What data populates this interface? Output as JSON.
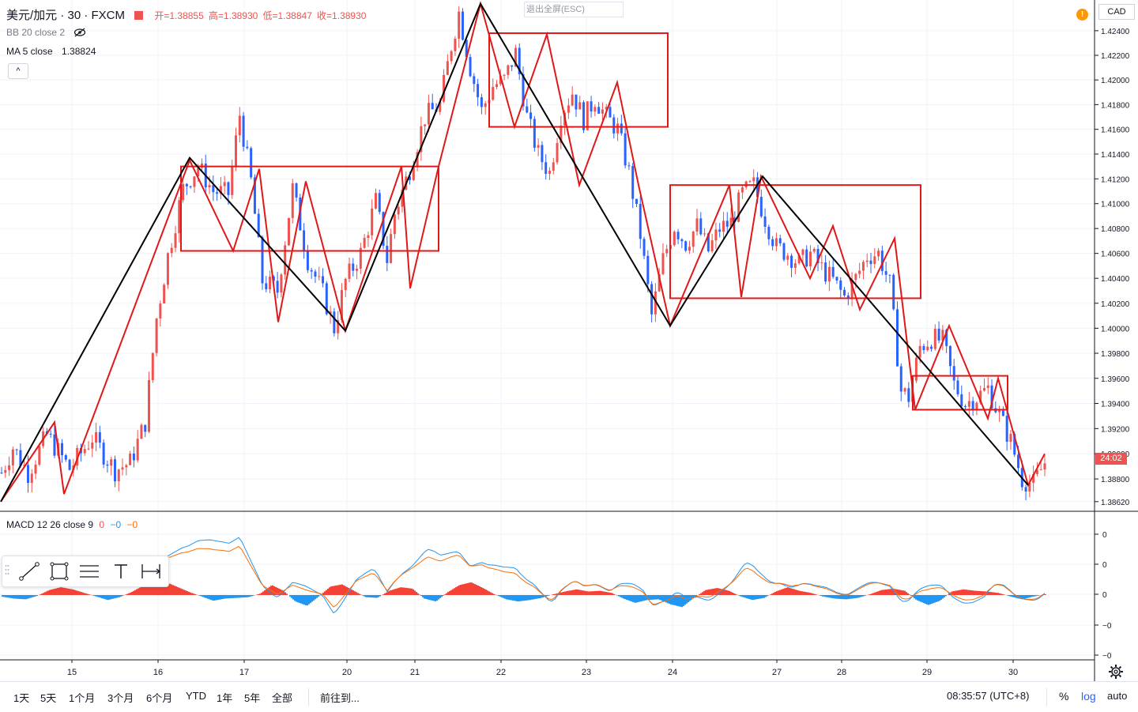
{
  "header": {
    "symbol": "美元/加元 · 30 · FXCM",
    "open_label": "开=1.38855",
    "high_label": "高=1.38930",
    "low_label": "低=1.38847",
    "close_label": "收=1.38930",
    "bb_label": "BB 20 close 2",
    "ma_label": "MA 5 close",
    "ma_value": "1.38824",
    "exit_fullscreen": "退出全屏(ESC)",
    "alert_badge": "!",
    "currency": "CAD",
    "collapse": "^"
  },
  "colors": {
    "up": "#ef5350",
    "down": "#2962ff",
    "wave_red": "#e01818",
    "wave_black": "#000000",
    "macd_line": "#2196f3",
    "signal_line": "#ff6d00",
    "hist_pos": "#f44336",
    "hist_neg": "#2196f3"
  },
  "chart_data": {
    "type": "candlestick",
    "symbol": "USDCAD",
    "timeframe": "30",
    "y_scale": "log",
    "ylim": [
      1.3855,
      1.4265
    ],
    "y_ticks": [
      "1.42400",
      "1.42200",
      "1.42000",
      "1.41800",
      "1.41600",
      "1.41400",
      "1.41200",
      "1.41000",
      "1.40800",
      "1.40600",
      "1.40400",
      "1.40200",
      "1.40000",
      "1.39800",
      "1.39600",
      "1.39400",
      "1.39200",
      "1.39000",
      "1.38800",
      "1.38620"
    ],
    "x_ticks": [
      "15",
      "16",
      "17",
      "20",
      "21",
      "22",
      "23",
      "24",
      "27",
      "28",
      "29",
      "30"
    ],
    "last_price_countdown": "24:02",
    "price_path": [
      [
        0,
        1.3885
      ],
      [
        3,
        1.3905
      ],
      [
        7,
        1.3885
      ],
      [
        12,
        1.3915
      ],
      [
        18,
        1.3888
      ],
      [
        24,
        1.3913
      ],
      [
        30,
        1.3887
      ],
      [
        34,
        1.3893
      ],
      [
        38,
        1.3925
      ],
      [
        41,
        1.4008
      ],
      [
        44,
        1.4058
      ],
      [
        48,
        1.4112
      ],
      [
        52,
        1.413
      ],
      [
        56,
        1.411
      ],
      [
        60,
        1.4108
      ],
      [
        63,
        1.4172
      ],
      [
        66,
        1.4118
      ],
      [
        69,
        1.4038
      ],
      [
        73,
        1.403
      ],
      [
        77,
        1.4112
      ],
      [
        81,
        1.4055
      ],
      [
        85,
        1.4028
      ],
      [
        88,
        1.4
      ],
      [
        91,
        1.4038
      ],
      [
        95,
        1.406
      ],
      [
        99,
        1.4102
      ],
      [
        102,
        1.4055
      ],
      [
        104,
        1.4092
      ],
      [
        108,
        1.4128
      ],
      [
        112,
        1.417
      ],
      [
        116,
        1.418
      ],
      [
        119,
        1.4228
      ],
      [
        121,
        1.4255
      ],
      [
        124,
        1.421
      ],
      [
        127,
        1.4175
      ],
      [
        130,
        1.4195
      ],
      [
        133,
        1.42
      ],
      [
        136,
        1.4222
      ],
      [
        139,
        1.417
      ],
      [
        142,
        1.414
      ],
      [
        145,
        1.4125
      ],
      [
        148,
        1.4172
      ],
      [
        151,
        1.419
      ],
      [
        154,
        1.4168
      ],
      [
        157,
        1.4185
      ],
      [
        160,
        1.417
      ],
      [
        163,
        1.416
      ],
      [
        166,
        1.4125
      ],
      [
        169,
        1.4075
      ],
      [
        172,
        1.401
      ],
      [
        175,
        1.4055
      ],
      [
        178,
        1.4082
      ],
      [
        181,
        1.4068
      ],
      [
        184,
        1.4082
      ],
      [
        187,
        1.4062
      ],
      [
        190,
        1.408
      ],
      [
        193,
        1.4085
      ],
      [
        196,
        1.4108
      ],
      [
        199,
        1.4115
      ],
      [
        202,
        1.4088
      ],
      [
        205,
        1.4065
      ],
      [
        208,
        1.406
      ],
      [
        211,
        1.4052
      ],
      [
        214,
        1.406
      ],
      [
        217,
        1.4048
      ],
      [
        220,
        1.4038
      ],
      [
        223,
        1.4025
      ],
      [
        226,
        1.404
      ],
      [
        229,
        1.4058
      ],
      [
        232,
        1.406
      ],
      [
        235,
        1.4035
      ],
      [
        238,
        1.395
      ],
      [
        240,
        1.3945
      ],
      [
        243,
        1.3985
      ],
      [
        246,
        1.3992
      ],
      [
        249,
        1.399
      ],
      [
        252,
        1.3955
      ],
      [
        255,
        1.394
      ],
      [
        258,
        1.3945
      ],
      [
        261,
        1.3952
      ],
      [
        264,
        1.393
      ],
      [
        267,
        1.391
      ],
      [
        270,
        1.388
      ],
      [
        273,
        1.3876
      ],
      [
        276,
        1.3893
      ]
    ],
    "wave_red_points": [
      [
        1,
        1.3862
      ],
      [
        69,
        1.3925
      ],
      [
        81,
        1.3868
      ],
      [
        240,
        1.4135
      ],
      [
        295,
        1.4062
      ],
      [
        328,
        1.4128
      ],
      [
        352,
        1.4005
      ],
      [
        387,
        1.4118
      ],
      [
        437,
        1.3998
      ],
      [
        508,
        1.413
      ],
      [
        519,
        1.4032
      ],
      [
        555,
        1.413
      ],
      [
        608,
        1.4262
      ],
      [
        651,
        1.4162
      ],
      [
        692,
        1.4237
      ],
      [
        733,
        1.4115
      ],
      [
        781,
        1.4198
      ],
      [
        808,
        1.4115
      ],
      [
        848,
        1.4002
      ],
      [
        923,
        1.4115
      ],
      [
        938,
        1.4025
      ],
      [
        963,
        1.4122
      ],
      [
        1025,
        1.404
      ],
      [
        1054,
        1.4082
      ],
      [
        1088,
        1.4015
      ],
      [
        1132,
        1.4072
      ],
      [
        1158,
        1.3935
      ],
      [
        1201,
        1.4002
      ],
      [
        1250,
        1.3928
      ],
      [
        1263,
        1.396
      ],
      [
        1301,
        1.3875
      ],
      [
        1322,
        1.39
      ]
    ],
    "wave_black_points": [
      [
        1,
        1.3862
      ],
      [
        240,
        1.4137
      ],
      [
        437,
        1.3998
      ],
      [
        608,
        1.4262
      ],
      [
        848,
        1.4002
      ],
      [
        965,
        1.4122
      ],
      [
        1301,
        1.3875
      ]
    ],
    "rectangles": [
      {
        "x0": 229,
        "x1": 555,
        "y_top": 1.413,
        "y_bottom": 1.4062
      },
      {
        "x0": 619,
        "x1": 845,
        "y_top": 1.4238,
        "y_bottom": 1.4162
      },
      {
        "x0": 848,
        "x1": 1165,
        "y_top": 1.4115,
        "y_bottom": 1.4024
      },
      {
        "x0": 1155,
        "x1": 1275,
        "y_top": 1.3962,
        "y_bottom": 1.3935
      }
    ],
    "macd": {
      "label": "MACD 12 26 close 9",
      "values": [
        "0",
        "−0",
        "−0"
      ],
      "y_ticks": [
        "0",
        "0",
        "0",
        "−0",
        "−0"
      ],
      "hist": [
        -0.12,
        -0.25,
        -0.3,
        -0.05,
        0.35,
        0.55,
        0.4,
        0.15,
        -0.1,
        -0.35,
        -0.15,
        0.2,
        0.65,
        1.0,
        0.9,
        0.55,
        0.2,
        -0.1,
        -0.4,
        -0.25,
        -0.2,
        -0.15,
        0.1,
        0.7,
        0.3,
        -0.45,
        -0.75,
        -0.1,
        0.6,
        0.75,
        0.3,
        -0.15,
        -0.2,
        0.3,
        0.55,
        0.45,
        -0.25,
        -0.45,
        0.2,
        0.7,
        0.9,
        0.5,
        0.05,
        -0.3,
        -0.45,
        -0.35,
        -0.2,
        0.05,
        0.25,
        0.4,
        0.25,
        0.3,
        0.15,
        -0.25,
        -0.55,
        -0.35,
        -0.3,
        -0.65,
        -0.85,
        -0.2,
        0.35,
        0.5,
        0.3,
        -0.1,
        -0.35,
        -0.2,
        0.25,
        0.55,
        0.3,
        0.15,
        -0.1,
        -0.25,
        -0.3,
        -0.2,
        0.05,
        0.35,
        0.45,
        0.3,
        -0.35,
        -0.7,
        -0.4,
        0.25,
        0.4,
        0.3,
        0.25,
        0.15,
        -0.1,
        -0.3,
        -0.1,
        0.05
      ]
    }
  },
  "bottom_bar": {
    "ranges": [
      "1天",
      "5天",
      "1个月",
      "3个月",
      "6个月",
      "YTD",
      "1年",
      "5年",
      "全部"
    ],
    "goto": "前往到...",
    "time": "08:35:57 (UTC+8)",
    "percent": "%",
    "log": "log",
    "auto": "auto"
  }
}
